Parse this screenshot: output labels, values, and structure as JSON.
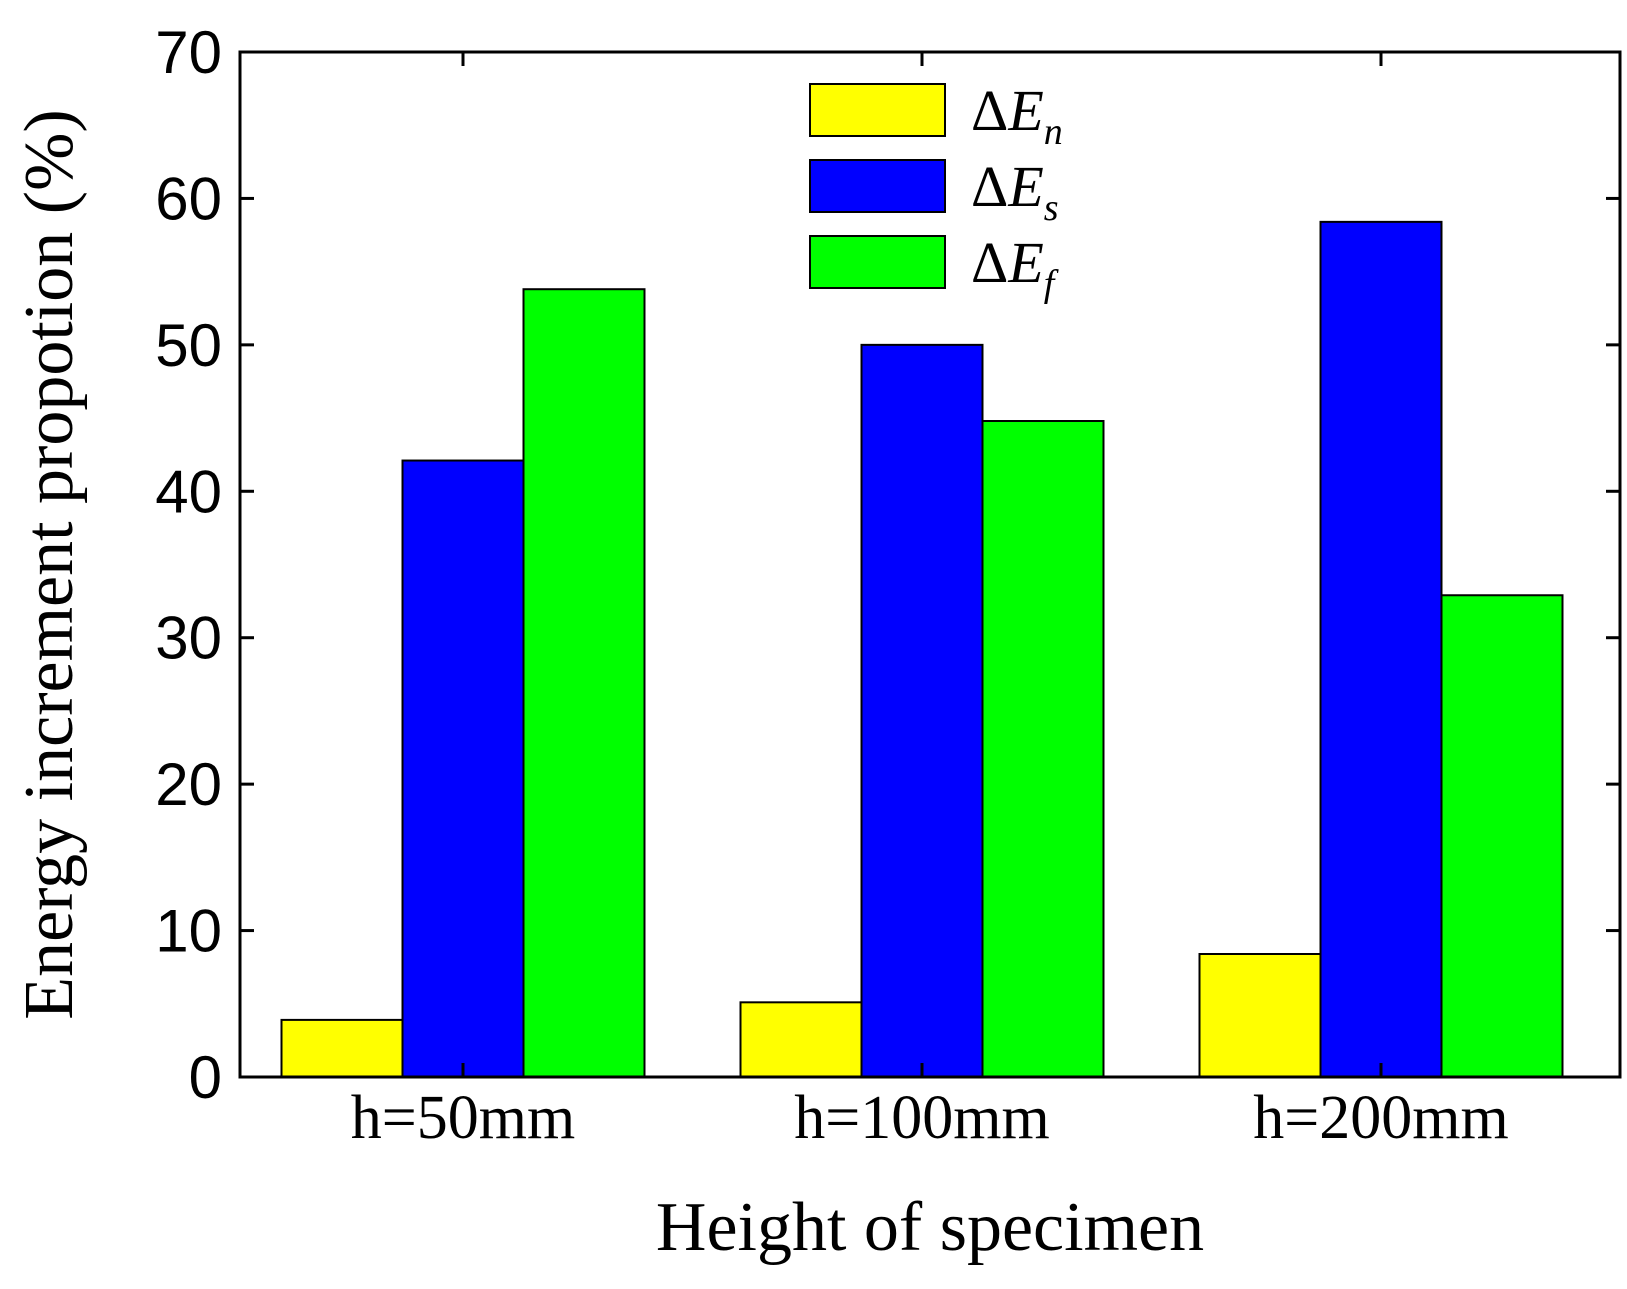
{
  "chart_data": {
    "type": "bar",
    "title": "",
    "xlabel": "Height of specimen",
    "ylabel": "Energy increment propotion (%)",
    "ylim": [
      0,
      70
    ],
    "yticks": [
      0,
      10,
      20,
      30,
      40,
      50,
      60,
      70
    ],
    "ytick_labels": [
      "0",
      "10",
      "20",
      "30",
      "40",
      "50",
      "60",
      "70"
    ],
    "categories": [
      "h=50mm",
      "h=100mm",
      "h=200mm"
    ],
    "series": [
      {
        "name": "ΔE_n",
        "symbol": "Δ",
        "letter": "E",
        "subscript": "n",
        "color": "#ffff00",
        "values": [
          3.9,
          5.1,
          8.4
        ]
      },
      {
        "name": "ΔE_s",
        "symbol": "Δ",
        "letter": "E",
        "subscript": "s",
        "color": "#0000ff",
        "values": [
          42.1,
          50.0,
          58.4
        ]
      },
      {
        "name": "ΔE_f",
        "symbol": "Δ",
        "letter": "E",
        "subscript": "f",
        "color": "#00ff00",
        "values": [
          53.8,
          44.8,
          32.9
        ]
      }
    ],
    "legend_position": "top-center",
    "grid": false
  }
}
